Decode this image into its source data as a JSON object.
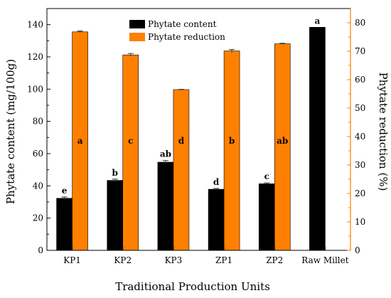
{
  "chart_data": {
    "type": "bar",
    "categories": [
      "KP1",
      "KP2",
      "KP3",
      "ZP1",
      "ZP2",
      "Raw Millet"
    ],
    "series": [
      {
        "name": "Phytate content",
        "axis": "left",
        "color": "#000000",
        "values": [
          32.3,
          43.4,
          54.7,
          37.9,
          41.3,
          138.4
        ],
        "errors": [
          0.8,
          0.8,
          1.0,
          0.5,
          0.6,
          0
        ],
        "letters": [
          "e",
          "b",
          "ab",
          "d",
          "c",
          "a"
        ]
      },
      {
        "name": "Phytate reduction",
        "axis": "right",
        "color": "#ff8000",
        "values": [
          76.8,
          68.7,
          56.5,
          70.1,
          72.6,
          null
        ],
        "errors": [
          0.3,
          0.5,
          0.1,
          0.5,
          0.2,
          0
        ],
        "letters": [
          "a",
          "c",
          "d",
          "b",
          "ab",
          ""
        ]
      }
    ],
    "title": "",
    "xlabel": "Traditional Production Units",
    "ylabel": "Phytate content (mg/100g)",
    "y2label": "Phytate reduction (%)",
    "ylim": [
      0,
      150
    ],
    "y2lim": [
      0,
      85
    ],
    "yticks": [
      0,
      20,
      40,
      60,
      80,
      100,
      120,
      140
    ],
    "y2ticks": [
      0,
      10,
      20,
      30,
      40,
      50,
      60,
      70,
      80
    ],
    "right_axis_color": "#ff8000",
    "legend_position": "top-center",
    "grid": false
  }
}
